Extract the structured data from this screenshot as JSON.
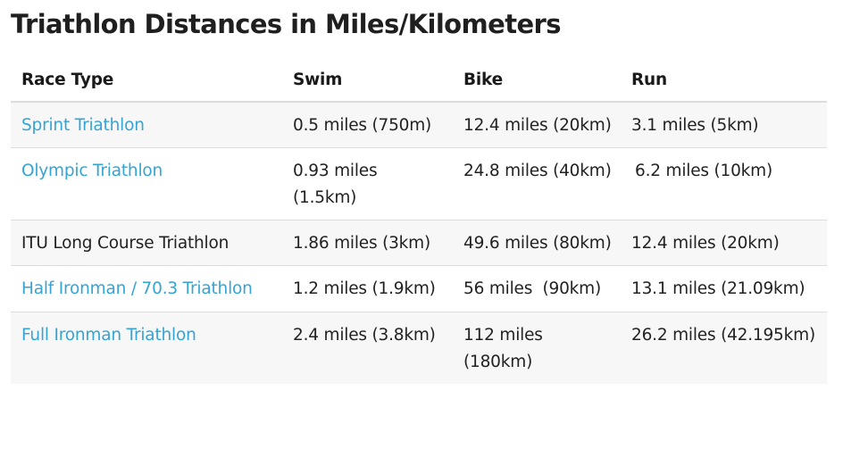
{
  "page": {
    "title": "Triathlon Distances in Miles/Kilometers"
  },
  "table": {
    "headers": {
      "race_type": "Race Type",
      "swim": "Swim",
      "bike": "Bike",
      "run": "Run"
    },
    "rows": [
      {
        "race_type": "Sprint Triathlon",
        "is_link": true,
        "swim": "0.5 miles (750m)",
        "bike": "12.4 miles (20km)",
        "run": "3.1 miles (5km)"
      },
      {
        "race_type": "Olympic Triathlon",
        "is_link": true,
        "swim": "0.93 miles (1.5km)",
        "bike": "24.8 miles (40km)",
        "run": "6.2 miles (10km)"
      },
      {
        "race_type": "ITU Long Course Triathlon",
        "is_link": false,
        "swim": "1.86 miles (3km)",
        "bike": "49.6 miles (80km)",
        "run": "12.4 miles (20km)"
      },
      {
        "race_type": "Half Ironman / 70.3 Triathlon",
        "is_link": true,
        "swim": "1.2 miles (1.9km)",
        "bike": "56 miles  (90km)",
        "run": "13.1 miles (21.09km)"
      },
      {
        "race_type": "Full Ironman Triathlon",
        "is_link": true,
        "swim": "2.4 miles (3.8km)",
        "bike": "112 miles (180km)",
        "run": "26.2 miles (42.195km)"
      }
    ]
  },
  "colors": {
    "link": "#35a4d4",
    "text": "#222222",
    "row_stripe": "#f7f7f7",
    "border": "#dddddd"
  }
}
